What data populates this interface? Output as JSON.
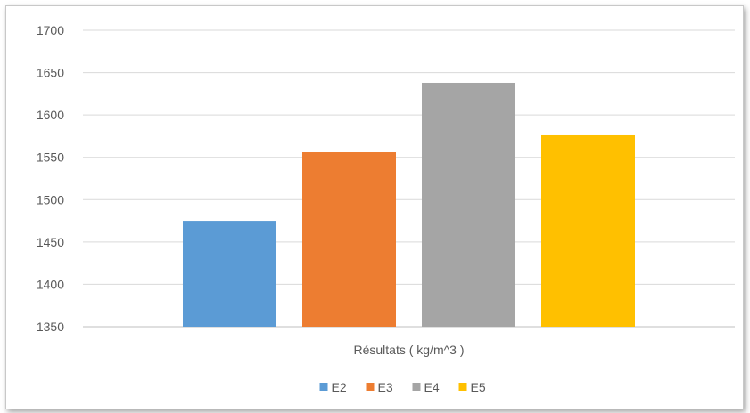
{
  "chart_data": {
    "type": "bar",
    "categories": [
      "Résultats ( kg/m^3 )"
    ],
    "series": [
      {
        "name": "E2",
        "values": [
          1475
        ],
        "color": "#5b9bd5"
      },
      {
        "name": "E3",
        "values": [
          1556
        ],
        "color": "#ed7d31"
      },
      {
        "name": "E4",
        "values": [
          1638
        ],
        "color": "#a5a5a5"
      },
      {
        "name": "E5",
        "values": [
          1576
        ],
        "color": "#ffc000"
      }
    ],
    "title": "",
    "xlabel": "",
    "ylabel": "",
    "ylim": [
      1350,
      1700
    ],
    "yticks": [
      1350,
      1400,
      1450,
      1500,
      1550,
      1600,
      1650,
      1700
    ],
    "grid": true,
    "legend": "bottom"
  }
}
